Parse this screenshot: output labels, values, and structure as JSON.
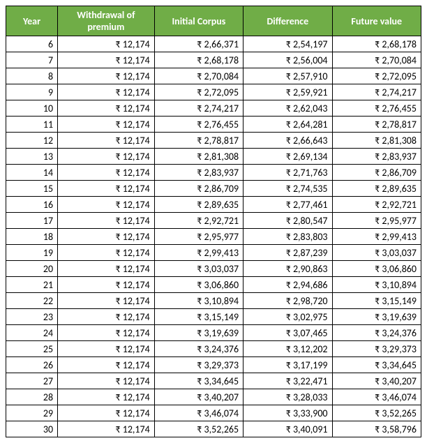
{
  "table": {
    "header_bg": "#70ad47",
    "header_fg": "#ffffff",
    "columns": [
      {
        "key": "year",
        "label": "Year"
      },
      {
        "key": "withdrawal",
        "label": "Withdrawal of premium"
      },
      {
        "key": "initial",
        "label": "Initial Corpus"
      },
      {
        "key": "diff",
        "label": "Difference"
      },
      {
        "key": "future",
        "label": "Future value"
      }
    ],
    "rows": [
      {
        "year": "6",
        "withdrawal": "₹ 12,174",
        "initial": "₹ 2,66,371",
        "diff": "₹ 2,54,197",
        "future": "₹ 2,68,178"
      },
      {
        "year": "7",
        "withdrawal": "₹ 12,174",
        "initial": "₹ 2,68,178",
        "diff": "₹ 2,56,004",
        "future": "₹ 2,70,084"
      },
      {
        "year": "8",
        "withdrawal": "₹ 12,174",
        "initial": "₹ 2,70,084",
        "diff": "₹ 2,57,910",
        "future": "₹ 2,72,095"
      },
      {
        "year": "9",
        "withdrawal": "₹ 12,174",
        "initial": "₹ 2,72,095",
        "diff": "₹ 2,59,921",
        "future": "₹ 2,74,217"
      },
      {
        "year": "10",
        "withdrawal": "₹ 12,174",
        "initial": "₹ 2,74,217",
        "diff": "₹ 2,62,043",
        "future": "₹ 2,76,455"
      },
      {
        "year": "11",
        "withdrawal": "₹ 12,174",
        "initial": "₹ 2,76,455",
        "diff": "₹ 2,64,281",
        "future": "₹ 2,78,817"
      },
      {
        "year": "12",
        "withdrawal": "₹ 12,174",
        "initial": "₹ 2,78,817",
        "diff": "₹ 2,66,643",
        "future": "₹ 2,81,308"
      },
      {
        "year": "13",
        "withdrawal": "₹ 12,174",
        "initial": "₹ 2,81,308",
        "diff": "₹ 2,69,134",
        "future": "₹ 2,83,937"
      },
      {
        "year": "14",
        "withdrawal": "₹ 12,174",
        "initial": "₹ 2,83,937",
        "diff": "₹ 2,71,763",
        "future": "₹ 2,86,709"
      },
      {
        "year": "15",
        "withdrawal": "₹ 12,174",
        "initial": "₹ 2,86,709",
        "diff": "₹ 2,74,535",
        "future": "₹ 2,89,635"
      },
      {
        "year": "16",
        "withdrawal": "₹ 12,174",
        "initial": "₹ 2,89,635",
        "diff": "₹ 2,77,461",
        "future": "₹ 2,92,721"
      },
      {
        "year": "17",
        "withdrawal": "₹ 12,174",
        "initial": "₹ 2,92,721",
        "diff": "₹ 2,80,547",
        "future": "₹ 2,95,977"
      },
      {
        "year": "18",
        "withdrawal": "₹ 12,174",
        "initial": "₹ 2,95,977",
        "diff": "₹ 2,83,803",
        "future": "₹ 2,99,413"
      },
      {
        "year": "19",
        "withdrawal": "₹ 12,174",
        "initial": "₹ 2,99,413",
        "diff": "₹ 2,87,239",
        "future": "₹ 3,03,037"
      },
      {
        "year": "20",
        "withdrawal": "₹ 12,174",
        "initial": "₹ 3,03,037",
        "diff": "₹ 2,90,863",
        "future": "₹ 3,06,860"
      },
      {
        "year": "21",
        "withdrawal": "₹ 12,174",
        "initial": "₹ 3,06,860",
        "diff": "₹ 2,94,686",
        "future": "₹ 3,10,894"
      },
      {
        "year": "22",
        "withdrawal": "₹ 12,174",
        "initial": "₹ 3,10,894",
        "diff": "₹ 2,98,720",
        "future": "₹ 3,15,149"
      },
      {
        "year": "23",
        "withdrawal": "₹ 12,174",
        "initial": "₹ 3,15,149",
        "diff": "₹ 3,02,975",
        "future": "₹ 3,19,639"
      },
      {
        "year": "24",
        "withdrawal": "₹ 12,174",
        "initial": "₹ 3,19,639",
        "diff": "₹ 3,07,465",
        "future": "₹ 3,24,376"
      },
      {
        "year": "25",
        "withdrawal": "₹ 12,174",
        "initial": "₹ 3,24,376",
        "diff": "₹ 3,12,202",
        "future": "₹ 3,29,373"
      },
      {
        "year": "26",
        "withdrawal": "₹ 12,174",
        "initial": "₹ 3,29,373",
        "diff": "₹ 3,17,199",
        "future": "₹ 3,34,645"
      },
      {
        "year": "27",
        "withdrawal": "₹ 12,174",
        "initial": "₹ 3,34,645",
        "diff": "₹ 3,22,471",
        "future": "₹ 3,40,207"
      },
      {
        "year": "28",
        "withdrawal": "₹ 12,174",
        "initial": "₹ 3,40,207",
        "diff": "₹ 3,28,033",
        "future": "₹ 3,46,074"
      },
      {
        "year": "29",
        "withdrawal": "₹ 12,174",
        "initial": "₹ 3,46,074",
        "diff": "₹ 3,33,900",
        "future": "₹ 3,52,265"
      },
      {
        "year": "30",
        "withdrawal": "₹ 12,174",
        "initial": "₹ 3,52,265",
        "diff": "₹ 3,40,091",
        "future": "₹ 3,58,796"
      }
    ]
  }
}
